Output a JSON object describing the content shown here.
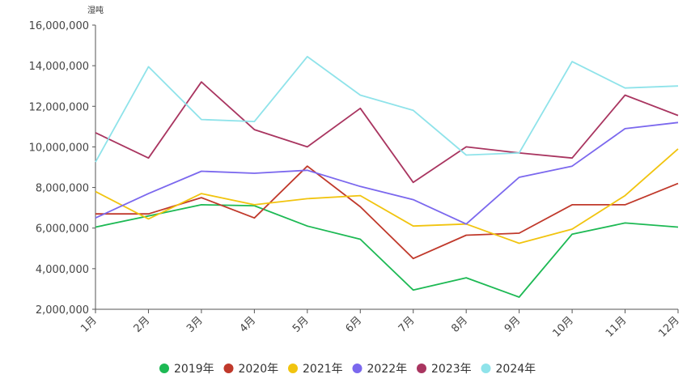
{
  "chart_data": {
    "type": "line",
    "unit_label": "湿吨",
    "categories": [
      "1月",
      "2月",
      "3月",
      "4月",
      "5月",
      "6月",
      "7月",
      "8月",
      "9月",
      "10月",
      "11月",
      "12月"
    ],
    "ylim": [
      2000000,
      16000000
    ],
    "yticks": [
      {
        "value": 2000000,
        "label": "2,000,000"
      },
      {
        "value": 4000000,
        "label": "4,000,000"
      },
      {
        "value": 6000000,
        "label": "6,000,000"
      },
      {
        "value": 8000000,
        "label": "8,000,000"
      },
      {
        "value": 10000000,
        "label": "10,000,000"
      },
      {
        "value": 12000000,
        "label": "12,000,000"
      },
      {
        "value": 14000000,
        "label": "14,000,000"
      },
      {
        "value": 16000000,
        "label": "16,000,000"
      }
    ],
    "grid": false,
    "legend_position": "bottom",
    "series": [
      {
        "name": "2019年",
        "color": "#1db954",
        "values": [
          6050000,
          6600000,
          7150000,
          7100000,
          6100000,
          5450000,
          2950000,
          3550000,
          2600000,
          5700000,
          6250000,
          6050000
        ]
      },
      {
        "name": "2020年",
        "color": "#c0392b",
        "values": [
          6700000,
          6700000,
          7500000,
          6500000,
          9050000,
          7050000,
          4500000,
          5650000,
          5750000,
          7150000,
          7150000,
          8200000
        ]
      },
      {
        "name": "2021年",
        "color": "#f1c40f",
        "values": [
          7800000,
          6450000,
          7700000,
          7150000,
          7450000,
          7600000,
          6100000,
          6200000,
          5250000,
          5950000,
          7600000,
          9900000
        ]
      },
      {
        "name": "2022年",
        "color": "#7b68ee",
        "values": [
          6500000,
          7700000,
          8800000,
          8700000,
          8850000,
          8050000,
          7400000,
          6200000,
          8500000,
          9050000,
          10900000,
          11200000
        ]
      },
      {
        "name": "2023年",
        "color": "#a93560",
        "values": [
          10700000,
          9450000,
          13200000,
          10850000,
          10000000,
          11900000,
          8250000,
          10000000,
          9700000,
          9450000,
          12550000,
          11550000
        ]
      },
      {
        "name": "2024年",
        "color": "#8fe3ea",
        "values": [
          9250000,
          13950000,
          11350000,
          11250000,
          14450000,
          12550000,
          11800000,
          9600000,
          9700000,
          14200000,
          12900000,
          13000000
        ]
      }
    ]
  }
}
